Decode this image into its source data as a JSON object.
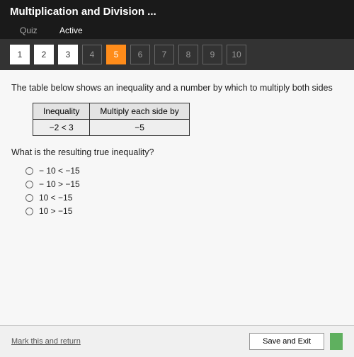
{
  "header": {
    "title": "Multiplication and Division ...",
    "tabs": {
      "quiz": "Quiz",
      "active": "Active"
    }
  },
  "nav": {
    "items": [
      {
        "n": "1",
        "state": "done"
      },
      {
        "n": "2",
        "state": "done"
      },
      {
        "n": "3",
        "state": "done"
      },
      {
        "n": "4",
        "state": ""
      },
      {
        "n": "5",
        "state": "current"
      },
      {
        "n": "6",
        "state": ""
      },
      {
        "n": "7",
        "state": ""
      },
      {
        "n": "8",
        "state": ""
      },
      {
        "n": "9",
        "state": ""
      },
      {
        "n": "10",
        "state": ""
      }
    ]
  },
  "content": {
    "prompt": "The table below shows an inequality and a number by which to multiply both sides",
    "table": {
      "h1": "Inequality",
      "h2": "Multiply each side by",
      "c1": "−2 < 3",
      "c2": "−5"
    },
    "question": "What is the resulting true inequality?",
    "options": [
      "− 10 < −15",
      "− 10 > −15",
      "10 < −15",
      "10 > −15"
    ]
  },
  "footer": {
    "mark": "Mark this and return",
    "save": "Save and Exit",
    "next": ""
  },
  "colors": {
    "header_bg": "#1a1a1a",
    "nav_bg": "#333333",
    "current": "#ff8c1a",
    "content_bg": "#f7f7f7",
    "primary_btn": "#5fb05f"
  }
}
